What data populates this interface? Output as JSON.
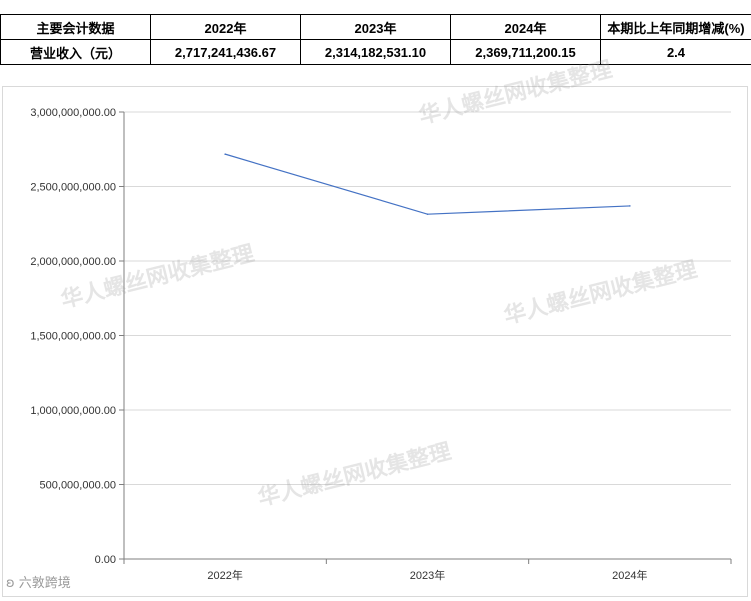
{
  "table": {
    "headers": [
      "主要会计数据",
      "2022年",
      "2023年",
      "2024年",
      "本期比上年同期增减(%)"
    ],
    "row": {
      "label": "营业收入（元）",
      "values": [
        "2,717,241,436.67",
        "2,314,182,531.10",
        "2,369,711,200.15",
        "2.4"
      ]
    }
  },
  "watermark_text": "华人螺丝网收集整理",
  "logo_text": "六敦跨境",
  "colors": {
    "line": "#4472c4",
    "grid": "#d9d9d9",
    "axis": "#7f7f7f"
  },
  "chart_data": {
    "type": "line",
    "categories": [
      "2022年",
      "2023年",
      "2024年"
    ],
    "series": [
      {
        "values": [
          2717241436.67,
          2314182531.1,
          2369711200.15
        ]
      }
    ],
    "ylim": [
      0,
      3000000000
    ],
    "y_ticks": [
      0,
      500000000,
      1000000000,
      1500000000,
      2000000000,
      2500000000,
      3000000000
    ],
    "y_tick_labels": [
      "0.00",
      "500,000,000.00",
      "1,000,000,000.00",
      "1,500,000,000.00",
      "2,000,000,000.00",
      "2,500,000,000.00",
      "3,000,000,000.00"
    ],
    "grid": true,
    "legend": "none"
  }
}
